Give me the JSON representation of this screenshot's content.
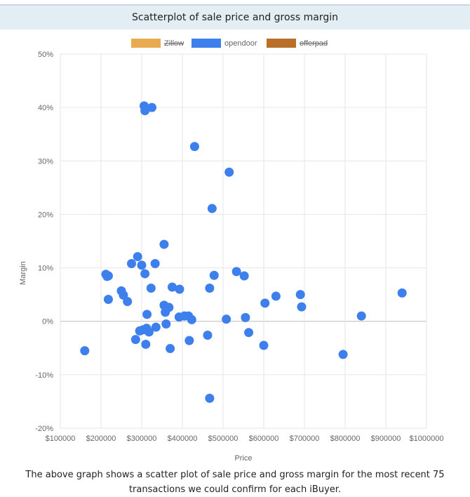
{
  "page": {
    "title": "Scatterplot of sale price and gross margin",
    "caption": "The above graph shows a scatter plot of sale price and gross margin for the most recent 75 transactions we could confirm for each iBuyer."
  },
  "chart_data": {
    "type": "scatter",
    "title": "Scatterplot of sale price and gross margin",
    "xlabel": "Price",
    "ylabel": "Margin",
    "xlim": [
      100000,
      1000000
    ],
    "ylim": [
      -20,
      50
    ],
    "x_ticks": [
      100000,
      200000,
      300000,
      400000,
      500000,
      600000,
      700000,
      800000,
      900000,
      1000000
    ],
    "x_tick_labels": [
      "$100000",
      "$200000",
      "$300000",
      "$400000",
      "$500000",
      "$600000",
      "$700000",
      "$800000",
      "$900000",
      "$1000000"
    ],
    "y_ticks": [
      -20,
      -10,
      0,
      10,
      20,
      30,
      40,
      50
    ],
    "y_tick_labels": [
      "-20%",
      "-10%",
      "0%",
      "10%",
      "20%",
      "30%",
      "40%",
      "50%"
    ],
    "grid": true,
    "legend_position": "top-center",
    "legend": [
      {
        "name": "Zillow",
        "color": "#e8ab4f",
        "hidden": true
      },
      {
        "name": "opendoor",
        "color": "#3d7fec",
        "hidden": false
      },
      {
        "name": "offerpad",
        "color": "#b96f2a",
        "hidden": true
      }
    ],
    "series": [
      {
        "name": "opendoor",
        "color": "#3d7fec",
        "points": [
          {
            "x": 160000,
            "y": -5.5
          },
          {
            "x": 212000,
            "y": 8.8
          },
          {
            "x": 215000,
            "y": 8.4
          },
          {
            "x": 218000,
            "y": 8.5
          },
          {
            "x": 218000,
            "y": 4.1
          },
          {
            "x": 250000,
            "y": 5.7
          },
          {
            "x": 255000,
            "y": 4.9
          },
          {
            "x": 265000,
            "y": 3.7
          },
          {
            "x": 275000,
            "y": 10.8
          },
          {
            "x": 285000,
            "y": -3.4
          },
          {
            "x": 290000,
            "y": 12.1
          },
          {
            "x": 295000,
            "y": -1.8
          },
          {
            "x": 300000,
            "y": 10.5
          },
          {
            "x": 303000,
            "y": -1.6
          },
          {
            "x": 306000,
            "y": 40.3
          },
          {
            "x": 308000,
            "y": 39.4
          },
          {
            "x": 308000,
            "y": 8.9
          },
          {
            "x": 310000,
            "y": -4.3
          },
          {
            "x": 312000,
            "y": -1.3
          },
          {
            "x": 313000,
            "y": 1.3
          },
          {
            "x": 318000,
            "y": -2.0
          },
          {
            "x": 323000,
            "y": 6.2
          },
          {
            "x": 325000,
            "y": 40.0
          },
          {
            "x": 333000,
            "y": 10.8
          },
          {
            "x": 335000,
            "y": -1.1
          },
          {
            "x": 355000,
            "y": 14.4
          },
          {
            "x": 355000,
            "y": 3.0
          },
          {
            "x": 358000,
            "y": 1.7
          },
          {
            "x": 360000,
            "y": -0.5
          },
          {
            "x": 367000,
            "y": 2.6
          },
          {
            "x": 370000,
            "y": -5.1
          },
          {
            "x": 375000,
            "y": 6.4
          },
          {
            "x": 392000,
            "y": 0.8
          },
          {
            "x": 393000,
            "y": 6.0
          },
          {
            "x": 405000,
            "y": 1.0
          },
          {
            "x": 415000,
            "y": 1.0
          },
          {
            "x": 417000,
            "y": -3.6
          },
          {
            "x": 423000,
            "y": 0.3
          },
          {
            "x": 430000,
            "y": 32.7
          },
          {
            "x": 462000,
            "y": -2.6
          },
          {
            "x": 467000,
            "y": 6.2
          },
          {
            "x": 467000,
            "y": -14.4
          },
          {
            "x": 473000,
            "y": 21.1
          },
          {
            "x": 478000,
            "y": 8.6
          },
          {
            "x": 508000,
            "y": 0.4
          },
          {
            "x": 515000,
            "y": 27.9
          },
          {
            "x": 533000,
            "y": 9.3
          },
          {
            "x": 552000,
            "y": 8.5
          },
          {
            "x": 555000,
            "y": 0.7
          },
          {
            "x": 563000,
            "y": -2.1
          },
          {
            "x": 600000,
            "y": -4.5
          },
          {
            "x": 603000,
            "y": 3.4
          },
          {
            "x": 630000,
            "y": 4.7
          },
          {
            "x": 690000,
            "y": 5.0
          },
          {
            "x": 693000,
            "y": 2.7
          },
          {
            "x": 795000,
            "y": -6.2
          },
          {
            "x": 840000,
            "y": 1.0
          },
          {
            "x": 940000,
            "y": 5.3
          }
        ]
      }
    ]
  }
}
